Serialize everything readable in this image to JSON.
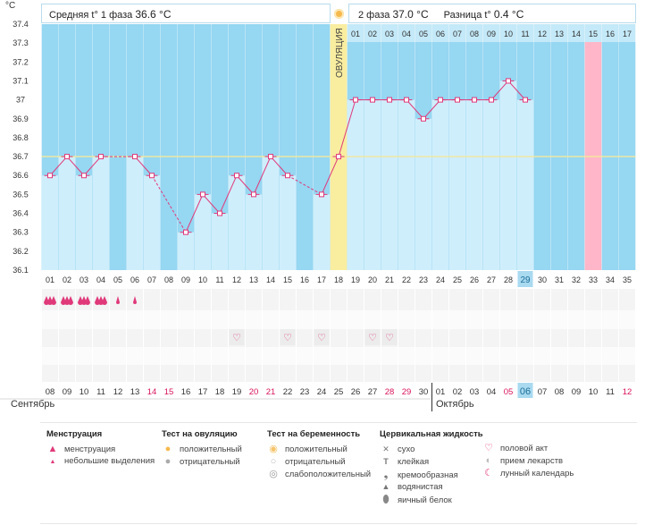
{
  "unit": "°C",
  "header": {
    "phase1_label": "Средняя t° 1 фаза",
    "phase1_value": "36.6 °C",
    "phase2_label": "2 фаза",
    "phase2_value": "37.0 °C",
    "diff_label": "Разница t°",
    "diff_value": "0.4 °C"
  },
  "ovulation_label": "ОВУЛЯЦИЯ",
  "months": {
    "first": "Сентябрь",
    "second": "Октябрь"
  },
  "chart_data": {
    "type": "line",
    "ylim": [
      36.1,
      37.4
    ],
    "yticks": [
      "37.4",
      "37.3",
      "37.2",
      "37.1",
      "37",
      "36.9",
      "36.8",
      "36.7",
      "36.6",
      "36.5",
      "36.4",
      "36.3",
      "36.2",
      "36.1"
    ],
    "days": [
      "01",
      "02",
      "03",
      "04",
      "05",
      "06",
      "07",
      "08",
      "09",
      "10",
      "11",
      "12",
      "13",
      "14",
      "15",
      "16",
      "17",
      "18",
      "19",
      "20",
      "21",
      "22",
      "23",
      "24",
      "25",
      "26",
      "27",
      "28",
      "29",
      "30",
      "31",
      "32",
      "33",
      "34",
      "35"
    ],
    "post_ovulation_days": [
      "01",
      "02",
      "03",
      "04",
      "05",
      "06",
      "07",
      "08",
      "09",
      "10",
      "11",
      "12",
      "13",
      "14",
      "15",
      "16",
      "17"
    ],
    "temperatures": [
      36.6,
      36.7,
      36.6,
      36.7,
      null,
      36.7,
      36.6,
      null,
      36.3,
      36.5,
      36.4,
      36.6,
      36.5,
      36.7,
      36.6,
      null,
      36.5,
      36.7,
      37.0,
      37.0,
      37.0,
      37.0,
      36.9,
      37.0,
      37.0,
      37.0,
      37.0,
      37.1,
      37.0,
      null,
      null,
      null,
      null,
      null,
      null
    ],
    "coverline": 36.7,
    "ovulation_day": 18,
    "highlight_day": 29,
    "highlight_col": 33,
    "dates": [
      "08",
      "09",
      "10",
      "11",
      "12",
      "13",
      "14",
      "15",
      "16",
      "17",
      "18",
      "19",
      "20",
      "21",
      "22",
      "23",
      "24",
      "25",
      "26",
      "27",
      "28",
      "29",
      "30",
      "01",
      "02",
      "03",
      "04",
      "05",
      "06",
      "07",
      "08",
      "09",
      "10",
      "11",
      "12"
    ],
    "red_dates": [
      7,
      8,
      13,
      14,
      21,
      22,
      28,
      35
    ],
    "today_index": 29,
    "month_split_index": 24,
    "menstruation": [
      3,
      3,
      3,
      3,
      1,
      1
    ],
    "intercourse_days": [
      12,
      15,
      17,
      20,
      21
    ],
    "colors": {
      "sky": "#96d7f2",
      "bar": "#cfeefc",
      "line": "#e0397a",
      "ovulation": "#f9eda0",
      "pink": "#ffb6c8",
      "coverline": "#f3e89a"
    }
  },
  "legend": {
    "menstruation": {
      "title": "Менструация",
      "items": [
        "менструация",
        "небольшие выделения"
      ]
    },
    "ovulation_test": {
      "title": "Тест на овуляцию",
      "items": [
        "положительный",
        "отрицательный"
      ]
    },
    "pregnancy_test": {
      "title": "Тест на беременность",
      "items": [
        "положительный",
        "отрицательный",
        "слабоположительный"
      ]
    },
    "cervical": {
      "title": "Цервикальная жидкость",
      "items": [
        "сухо",
        "клейкая",
        "кремообразная",
        "водянистая",
        "яичный белок"
      ]
    },
    "other": {
      "items": [
        "половой акт",
        "прием лекарств",
        "лунный календарь"
      ]
    }
  }
}
